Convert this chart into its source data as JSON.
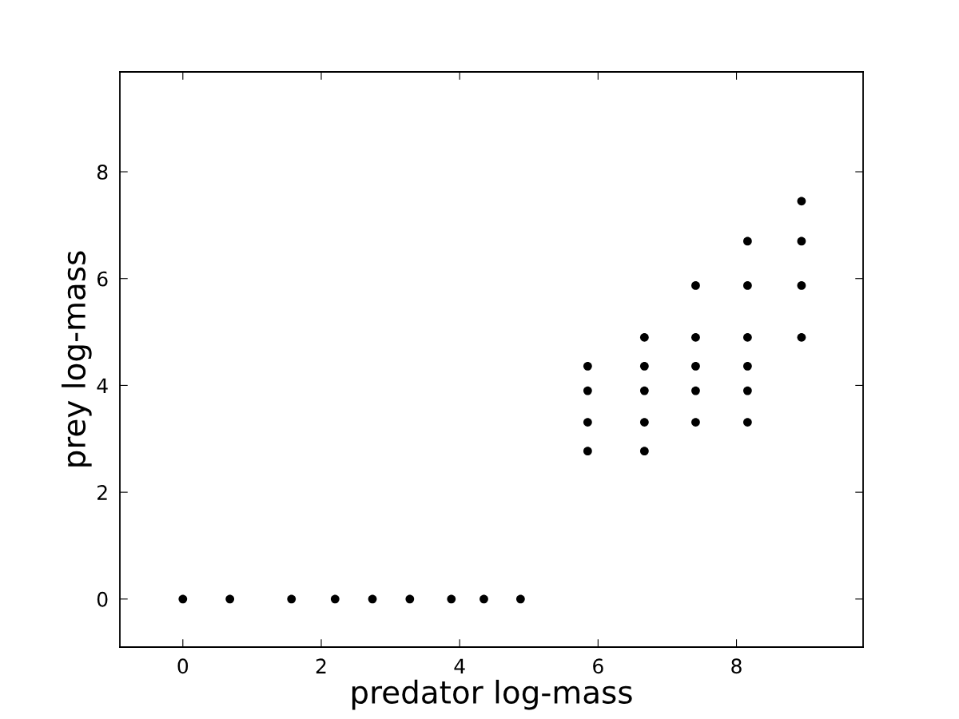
{
  "chart_data": {
    "type": "scatter",
    "xlabel": "predator log-mass",
    "ylabel": "prey log-mass",
    "series": [
      {
        "color": "#000000",
        "x": [
          0,
          0.68,
          1.57,
          2.2,
          2.74,
          3.28,
          3.88,
          4.35,
          4.88,
          5.85,
          5.85,
          5.85,
          5.85,
          6.67,
          6.67,
          6.67,
          6.67,
          6.67,
          7.41,
          7.41,
          7.41,
          7.41,
          7.41,
          8.16,
          8.16,
          8.16,
          8.16,
          8.16,
          8.16,
          8.94,
          8.94,
          8.94,
          8.94
        ],
        "values": [
          0,
          0,
          0,
          0,
          0,
          0,
          0,
          0,
          0,
          4.36,
          3.9,
          3.31,
          2.77,
          4.9,
          4.36,
          3.9,
          3.31,
          2.77,
          5.87,
          4.9,
          4.36,
          3.9,
          3.31,
          6.7,
          5.87,
          4.9,
          4.36,
          3.9,
          3.31,
          7.45,
          6.7,
          5.87,
          4.9
        ]
      }
    ],
    "xlim": [
      -0.91,
      9.83
    ],
    "ylim": [
      -0.9,
      9.87
    ],
    "xticks": [
      0,
      2,
      4,
      6,
      8
    ],
    "yticks": [
      0,
      2,
      4,
      6,
      8
    ],
    "marker": "circle",
    "grid": false,
    "legend": false
  }
}
